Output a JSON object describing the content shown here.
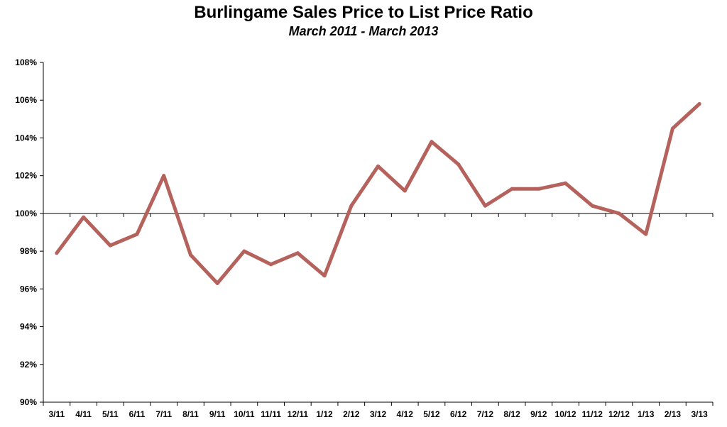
{
  "chart_data": {
    "type": "line",
    "title": "Burlingame Sales Price to List Price Ratio",
    "subtitle": "March 2011 - March 2013",
    "xlabel": "",
    "ylabel": "",
    "categories": [
      "3/11",
      "4/11",
      "5/11",
      "6/11",
      "7/11",
      "8/11",
      "9/11",
      "10/11",
      "11/11",
      "12/11",
      "1/12",
      "2/12",
      "3/12",
      "4/12",
      "5/12",
      "6/12",
      "7/12",
      "8/12",
      "9/12",
      "10/12",
      "11/12",
      "12/12",
      "1/13",
      "2/13",
      "3/13"
    ],
    "series": [
      {
        "color": "#b5615c",
        "values": [
          97.9,
          99.8,
          98.3,
          98.9,
          102.0,
          97.8,
          96.3,
          98.0,
          97.3,
          97.9,
          96.7,
          100.4,
          102.5,
          101.2,
          103.8,
          102.6,
          100.4,
          101.3,
          101.3,
          101.6,
          100.4,
          100.0,
          98.9,
          104.5,
          105.8
        ]
      }
    ],
    "ylim": [
      90,
      108
    ],
    "yticks": [
      "90%",
      "92%",
      "94%",
      "96%",
      "98%",
      "100%",
      "102%",
      "104%",
      "106%",
      "108%"
    ],
    "reference_line": 100,
    "grid": false,
    "legend": "none"
  }
}
